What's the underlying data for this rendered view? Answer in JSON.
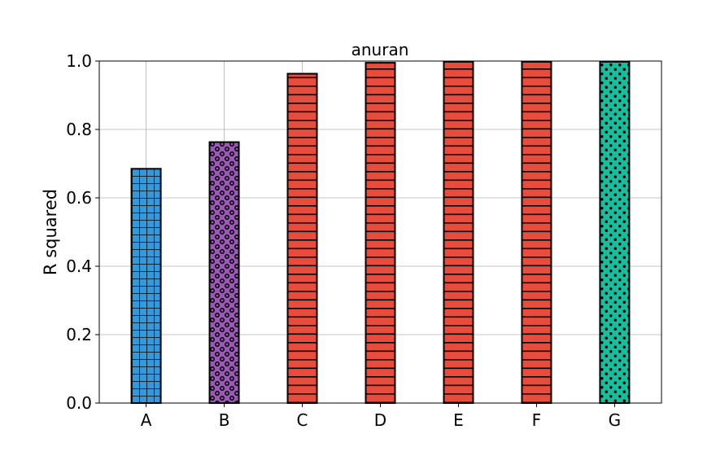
{
  "chart_data": {
    "type": "bar",
    "title": "anuran",
    "xlabel": "",
    "ylabel": "R squared",
    "categories": [
      "A",
      "B",
      "C",
      "D",
      "E",
      "F",
      "G"
    ],
    "values": [
      0.685,
      0.763,
      0.963,
      0.995,
      0.998,
      0.998,
      0.998
    ],
    "ylim": [
      0,
      1.0
    ],
    "yticks": [
      "0.0",
      "0.2",
      "0.4",
      "0.6",
      "0.8",
      "1.0"
    ],
    "grid": true,
    "bar_colors": [
      "#3498db",
      "#9b59b6",
      "#e74c3c",
      "#e74c3c",
      "#e74c3c",
      "#e74c3c",
      "#1abc9c"
    ],
    "bar_patterns": [
      "grid",
      "rings",
      "hlines",
      "hlines",
      "hlines",
      "hlines",
      "dots"
    ]
  }
}
